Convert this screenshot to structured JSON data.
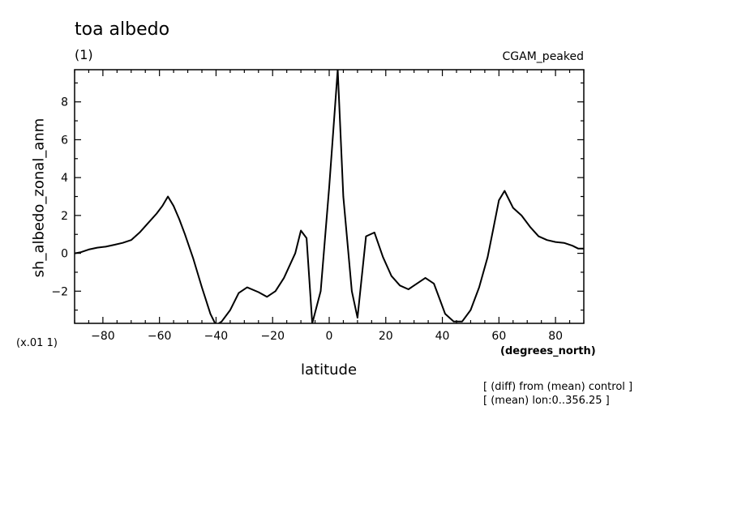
{
  "header": {
    "title": "toa albedo",
    "panel_label": "(1)",
    "dataset": "CGAM_peaked"
  },
  "footer": {
    "scale_note": "(x.01 1)",
    "x_units": "(degrees_north)",
    "note_line1": "[ (diff) from (mean) control ]",
    "note_line2": "[ (mean) lon:0..356.25 ]"
  },
  "chart_data": {
    "type": "line",
    "title": "toa albedo",
    "xlabel": "latitude",
    "ylabel": "sh_albedo_zonal_anm",
    "xlim": [
      -90,
      90
    ],
    "ylim": [
      -3.7,
      9.7
    ],
    "grid": false,
    "x_ticks": [
      -80,
      -60,
      -40,
      -20,
      0,
      20,
      40,
      60,
      80
    ],
    "y_ticks": [
      -2,
      0,
      2,
      4,
      6,
      8
    ],
    "x_tick_labels": [
      "−80",
      "−60",
      "−40",
      "−20",
      "0",
      "20",
      "40",
      "60",
      "80"
    ],
    "y_tick_labels": [
      "−2",
      "0",
      "2",
      "4",
      "6",
      "8"
    ],
    "x": [
      -90,
      -88,
      -85,
      -82,
      -79,
      -76,
      -73,
      -70,
      -67,
      -64,
      -61,
      -59,
      -57,
      -55,
      -53,
      -51,
      -48,
      -45,
      -42,
      -40,
      -38,
      -35,
      -32,
      -29,
      -25,
      -22,
      -19,
      -16,
      -12,
      -10,
      -8,
      -6,
      -3,
      0,
      3,
      5,
      8,
      10,
      13,
      16,
      19,
      22,
      25,
      28,
      31,
      34,
      37,
      39,
      41,
      44,
      47,
      50,
      53,
      56,
      58,
      60,
      62,
      65,
      68,
      71,
      74,
      77,
      80,
      83,
      86,
      88,
      90
    ],
    "series": [
      {
        "values": [
          0.0,
          0.05,
          0.2,
          0.3,
          0.35,
          0.45,
          0.55,
          0.7,
          1.1,
          1.6,
          2.1,
          2.5,
          3.0,
          2.5,
          1.8,
          1.0,
          -0.3,
          -1.8,
          -3.2,
          -3.8,
          -3.6,
          -3.0,
          -2.1,
          -1.8,
          -2.05,
          -2.3,
          -2.0,
          -1.3,
          0.0,
          1.2,
          0.8,
          -3.7,
          -2.0,
          3.5,
          9.7,
          3.0,
          -2.0,
          -3.4,
          0.9,
          1.1,
          -0.2,
          -1.2,
          -1.7,
          -1.9,
          -1.6,
          -1.3,
          -1.6,
          -2.4,
          -3.2,
          -3.6,
          -3.6,
          -3.0,
          -1.8,
          -0.2,
          1.3,
          2.8,
          3.3,
          2.4,
          2.0,
          1.4,
          0.9,
          0.7,
          0.6,
          0.55,
          0.4,
          0.25,
          0.25
        ]
      }
    ]
  }
}
